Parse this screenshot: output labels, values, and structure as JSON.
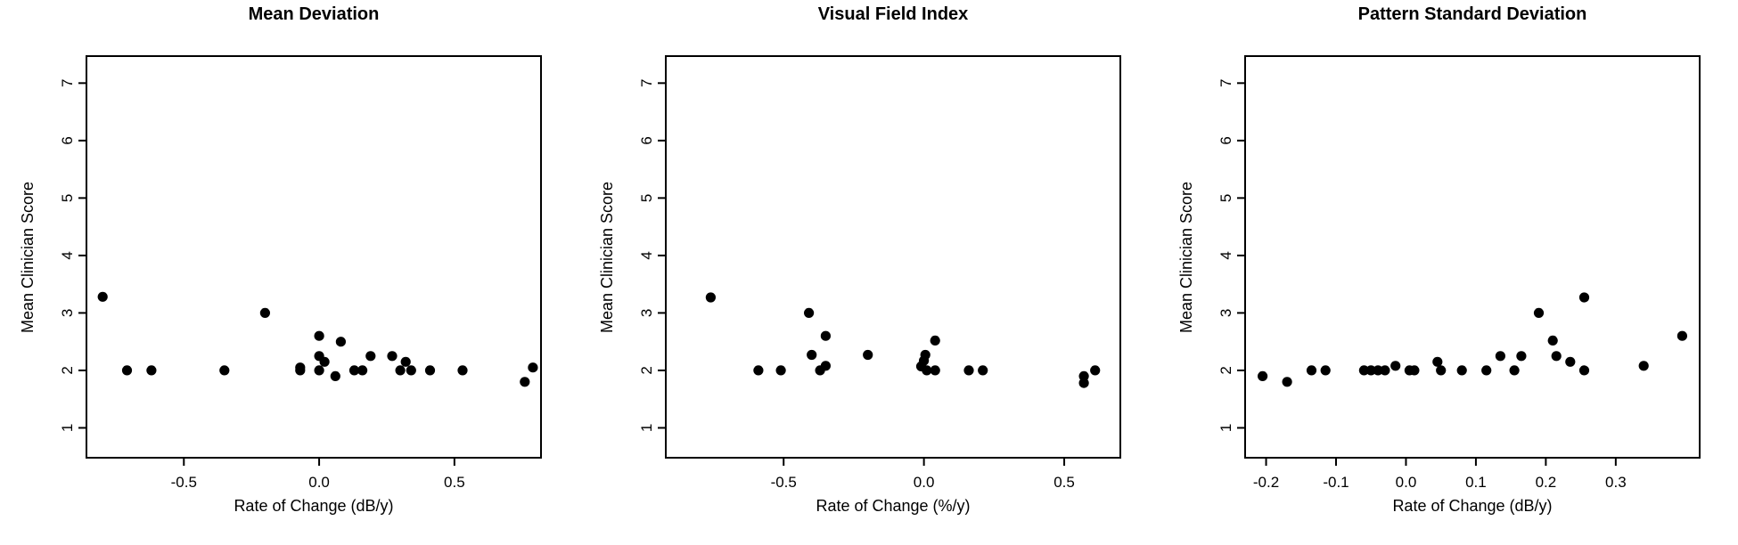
{
  "figure": {
    "background_color": "#ffffff",
    "axis_color": "#000000",
    "point_color": "#000000",
    "text_color": "#000000"
  },
  "chart_data": [
    {
      "type": "scatter",
      "title": "Mean Deviation",
      "xlabel": "Rate of Change (dB/y)",
      "ylabel": "Mean Clinician Score",
      "xlim": [
        -0.86,
        0.82
      ],
      "ylim": [
        0.48,
        7.47
      ],
      "xticks": [
        -0.5,
        0.0,
        0.5
      ],
      "xtick_labels": [
        "-0.5",
        "0.0",
        "0.5"
      ],
      "yticks": [
        1,
        2,
        3,
        4,
        5,
        6,
        7
      ],
      "ytick_labels": [
        "1",
        "2",
        "3",
        "4",
        "5",
        "6",
        "7"
      ],
      "grid": false,
      "legend": "none",
      "marker": "filled-circle",
      "points": [
        [
          -0.8,
          3.28
        ],
        [
          -0.71,
          2.0
        ],
        [
          -0.62,
          2.0
        ],
        [
          -0.35,
          2.0
        ],
        [
          -0.2,
          3.0
        ],
        [
          -0.07,
          2.05
        ],
        [
          -0.07,
          2.0
        ],
        [
          0.0,
          2.6
        ],
        [
          0.0,
          2.25
        ],
        [
          0.02,
          2.15
        ],
        [
          0.0,
          2.0
        ],
        [
          0.06,
          1.9
        ],
        [
          0.08,
          2.5
        ],
        [
          0.13,
          2.0
        ],
        [
          0.16,
          2.0
        ],
        [
          0.19,
          2.25
        ],
        [
          0.27,
          2.25
        ],
        [
          0.3,
          2.0
        ],
        [
          0.32,
          2.15
        ],
        [
          0.34,
          2.0
        ],
        [
          0.41,
          2.0
        ],
        [
          0.53,
          2.0
        ],
        [
          0.76,
          1.8
        ],
        [
          0.79,
          2.05
        ]
      ]
    },
    {
      "type": "scatter",
      "title": "Visual Field Index",
      "xlabel": "Rate of Change (%/y)",
      "ylabel": "Mean Clinician Score",
      "xlim": [
        -0.92,
        0.7
      ],
      "ylim": [
        0.48,
        7.47
      ],
      "xticks": [
        -0.5,
        0.0,
        0.5
      ],
      "xtick_labels": [
        "-0.5",
        "0.0",
        "0.5"
      ],
      "yticks": [
        1,
        2,
        3,
        4,
        5,
        6,
        7
      ],
      "ytick_labels": [
        "1",
        "2",
        "3",
        "4",
        "5",
        "6",
        "7"
      ],
      "grid": false,
      "legend": "none",
      "marker": "filled-circle",
      "points": [
        [
          -0.76,
          3.27
        ],
        [
          -0.59,
          2.0
        ],
        [
          -0.51,
          2.0
        ],
        [
          -0.41,
          3.0
        ],
        [
          -0.4,
          2.27
        ],
        [
          -0.37,
          2.0
        ],
        [
          -0.35,
          2.08
        ],
        [
          -0.35,
          2.6
        ],
        [
          -0.2,
          2.27
        ],
        [
          0.04,
          2.52
        ],
        [
          0.005,
          2.27
        ],
        [
          0.0,
          2.17
        ],
        [
          -0.01,
          2.07
        ],
        [
          0.01,
          2.0
        ],
        [
          0.04,
          2.0
        ],
        [
          0.16,
          2.0
        ],
        [
          0.21,
          2.0
        ],
        [
          0.57,
          1.9
        ],
        [
          0.57,
          1.78
        ],
        [
          0.61,
          2.0
        ]
      ]
    },
    {
      "type": "scatter",
      "title": "Pattern Standard Deviation",
      "xlabel": "Rate of Change (dB/y)",
      "ylabel": "Mean Clinician Score",
      "xlim": [
        -0.23,
        0.42
      ],
      "ylim": [
        0.48,
        7.47
      ],
      "xticks": [
        -0.2,
        -0.1,
        0.0,
        0.1,
        0.2,
        0.3
      ],
      "xtick_labels": [
        "-0.2",
        "-0.1",
        "0.0",
        "0.1",
        "0.2",
        "0.3"
      ],
      "yticks": [
        1,
        2,
        3,
        4,
        5,
        6,
        7
      ],
      "ytick_labels": [
        "1",
        "2",
        "3",
        "4",
        "5",
        "6",
        "7"
      ],
      "grid": false,
      "legend": "none",
      "marker": "filled-circle",
      "points": [
        [
          -0.205,
          1.9
        ],
        [
          -0.17,
          1.8
        ],
        [
          -0.135,
          2.0
        ],
        [
          -0.115,
          2.0
        ],
        [
          -0.06,
          2.0
        ],
        [
          -0.05,
          2.0
        ],
        [
          -0.04,
          2.0
        ],
        [
          -0.03,
          2.0
        ],
        [
          -0.015,
          2.08
        ],
        [
          0.005,
          2.0
        ],
        [
          0.012,
          2.0
        ],
        [
          0.045,
          2.15
        ],
        [
          0.05,
          2.0
        ],
        [
          0.08,
          2.0
        ],
        [
          0.115,
          2.0
        ],
        [
          0.135,
          2.25
        ],
        [
          0.155,
          2.0
        ],
        [
          0.165,
          2.25
        ],
        [
          0.19,
          3.0
        ],
        [
          0.21,
          2.52
        ],
        [
          0.215,
          2.25
        ],
        [
          0.235,
          2.15
        ],
        [
          0.255,
          3.27
        ],
        [
          0.255,
          2.0
        ],
        [
          0.34,
          2.08
        ],
        [
          0.395,
          2.6
        ]
      ]
    }
  ]
}
